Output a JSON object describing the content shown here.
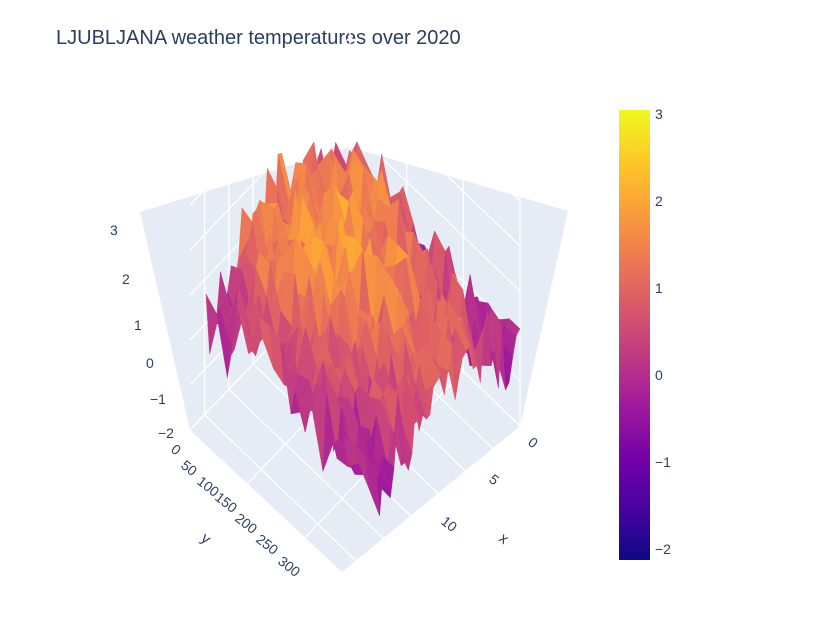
{
  "chart_data": {
    "type": "surface",
    "title": "LJUBLJANA weather temperatures over 2020",
    "xlabel": "x",
    "ylabel": "y",
    "zlabel": "",
    "x_range": [
      0,
      15
    ],
    "y_range": [
      0,
      330
    ],
    "z_range": [
      -2,
      3
    ],
    "x_ticks": [
      "0",
      "5",
      "10"
    ],
    "y_ticks": [
      "0",
      "50",
      "100",
      "150",
      "200",
      "250",
      "300"
    ],
    "z_ticks": [
      "−2",
      "−1",
      "0",
      "1",
      "2",
      "3"
    ],
    "colorbar": {
      "min": -2.1,
      "max": 3.1,
      "ticks": [
        "3",
        "2",
        "1",
        "0",
        "−1",
        "−2"
      ],
      "colorscale": [
        "#0d0887",
        "#46039f",
        "#7201a8",
        "#9c179e",
        "#bd3786",
        "#d8576b",
        "#ed7953",
        "#fb9f3a",
        "#fdca26",
        "#f0f921"
      ]
    },
    "grid": true
  }
}
